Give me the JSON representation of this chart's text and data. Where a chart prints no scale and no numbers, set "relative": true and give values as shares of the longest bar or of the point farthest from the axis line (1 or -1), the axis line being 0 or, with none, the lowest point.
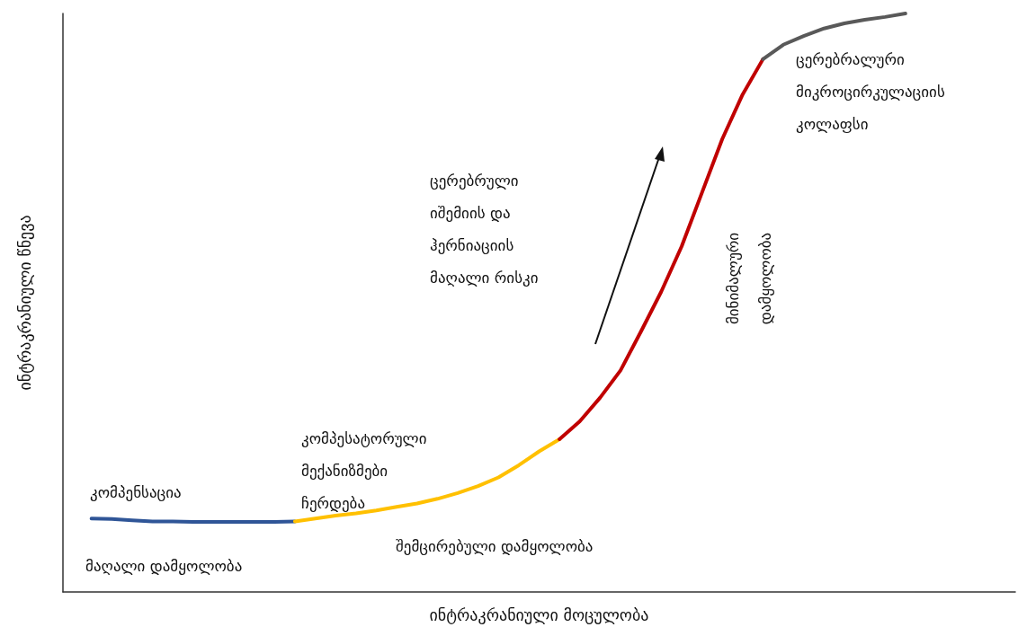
{
  "chart_data": {
    "type": "line",
    "relative": true,
    "xlabel": "ინტრაკრანიული მოცულობა",
    "ylabel": "ინტრაკრანიული წნევა",
    "categories": [
      null,
      null,
      null,
      null,
      null,
      null,
      null,
      null,
      null,
      null,
      null,
      null,
      null,
      null,
      null,
      null,
      null,
      null,
      null,
      null,
      null,
      null,
      null,
      null,
      null,
      null,
      null,
      null,
      null,
      null,
      null,
      null,
      null,
      null,
      null,
      null,
      null,
      null,
      null,
      null,
      null
    ],
    "series": [
      {
        "color": "#2f5597",
        "values": [
          0.127,
          0.126,
          0.124,
          0.122,
          0.122,
          0.121,
          0.121,
          0.121,
          0.121,
          0.121,
          0.122,
          null,
          null,
          null,
          null,
          null,
          null,
          null,
          null,
          null,
          null,
          null,
          null,
          null,
          null,
          null,
          null,
          null,
          null,
          null,
          null,
          null,
          null,
          null,
          null,
          null,
          null,
          null,
          null,
          null,
          null
        ]
      },
      {
        "color": "#ffc000",
        "values": [
          null,
          null,
          null,
          null,
          null,
          null,
          null,
          null,
          null,
          null,
          0.122,
          0.127,
          0.132,
          0.136,
          0.141,
          0.147,
          0.153,
          0.161,
          0.171,
          0.183,
          0.198,
          0.219,
          0.243,
          0.264,
          null,
          null,
          null,
          null,
          null,
          null,
          null,
          null,
          null,
          null,
          null,
          null,
          null,
          null,
          null,
          null,
          null
        ]
      },
      {
        "color": "#c00000",
        "values": [
          null,
          null,
          null,
          null,
          null,
          null,
          null,
          null,
          null,
          null,
          null,
          null,
          null,
          null,
          null,
          null,
          null,
          null,
          null,
          null,
          null,
          null,
          null,
          0.264,
          0.295,
          0.336,
          0.383,
          0.45,
          0.519,
          0.597,
          0.69,
          0.783,
          0.86,
          0.921,
          null,
          null,
          null,
          null,
          null,
          null,
          null
        ]
      },
      {
        "color": "#595959",
        "values": [
          null,
          null,
          null,
          null,
          null,
          null,
          null,
          null,
          null,
          null,
          null,
          null,
          null,
          null,
          null,
          null,
          null,
          null,
          null,
          null,
          null,
          null,
          null,
          null,
          null,
          null,
          null,
          null,
          null,
          null,
          null,
          null,
          null,
          0.921,
          0.946,
          0.961,
          0.974,
          0.983,
          0.989,
          0.994,
          1
        ]
      }
    ],
    "annotations": [
      "კომპენსაცია",
      "მაღალი დამყოლობა",
      "კომპესატორული\nმექანიზმები\nჩერდება",
      "შემცირებული დამყოლობა",
      "ცერებრული\nიშემიის და\nჰერნიაციის\nმაღალი რისკი",
      "მინიმალური\nდამყოლობა",
      "ცერებრალური\nმიკროცირკულაციის\nკოლაფსი"
    ],
    "grid": false,
    "marker": "none",
    "line_style": "solid"
  }
}
